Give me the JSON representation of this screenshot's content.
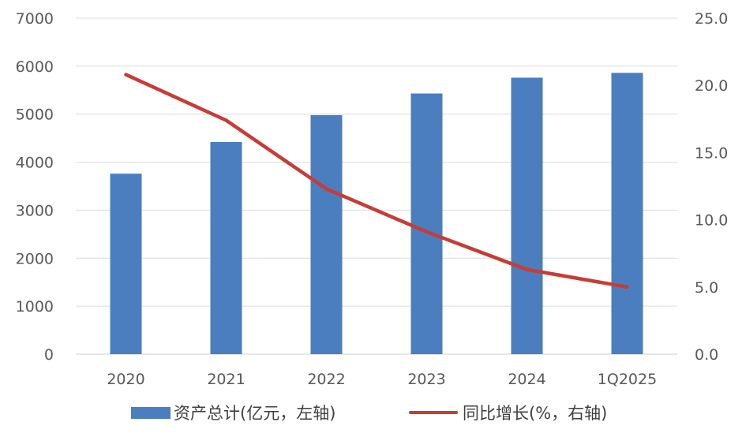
{
  "chart_data": {
    "type": "bar",
    "categories": [
      "2020",
      "2021",
      "2022",
      "2023",
      "2024",
      "1Q2025"
    ],
    "series": [
      {
        "name": "资产总计(亿元，左轴)",
        "type": "bar",
        "axis": "left",
        "color": "#4a7ebf",
        "values": [
          3760,
          4420,
          4980,
          5430,
          5760,
          5860
        ]
      },
      {
        "name": "同比增长(%，右轴)",
        "type": "line",
        "axis": "right",
        "color": "#c73c37",
        "values": [
          20.8,
          17.4,
          12.3,
          9.1,
          6.3,
          5.0
        ]
      }
    ],
    "ylim": [
      0,
      7000
    ],
    "yticks": [
      "0",
      "1000",
      "2000",
      "3000",
      "4000",
      "5000",
      "6000",
      "7000"
    ],
    "y2lim": [
      0,
      25
    ],
    "y2ticks": [
      "0.0",
      "5.0",
      "10.0",
      "15.0",
      "20.0",
      "25.0"
    ],
    "grid": true,
    "legend_position": "bottom"
  }
}
